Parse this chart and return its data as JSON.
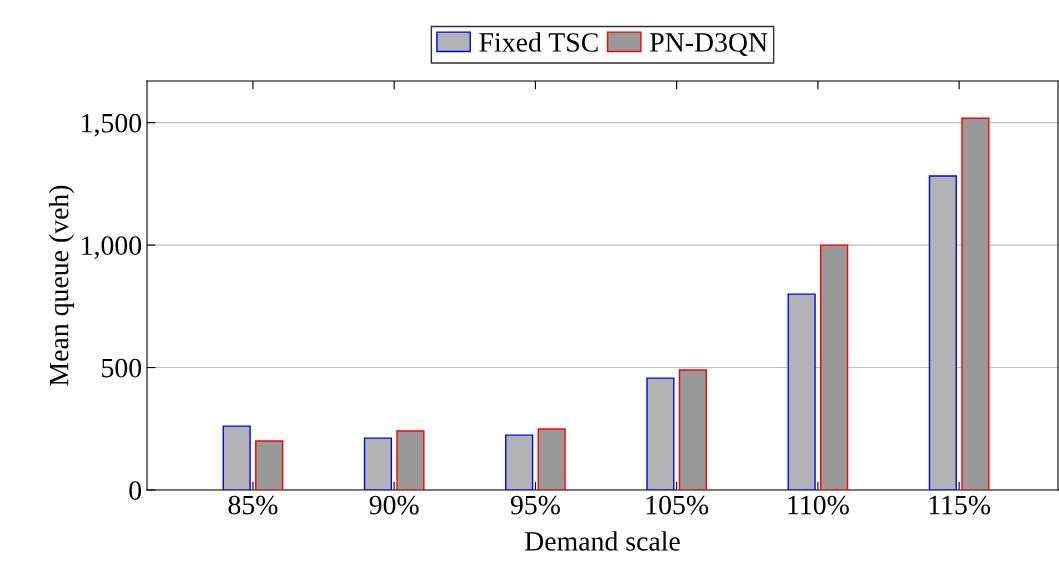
{
  "chart_data": {
    "type": "bar",
    "xlabel": "Demand scale",
    "ylabel": "Mean queue (veh)",
    "categories": [
      "85%",
      "90%",
      "95%",
      "105%",
      "110%",
      "115%"
    ],
    "series": [
      {
        "name": "Fixed TSC",
        "color": "#b3b3b3",
        "values": [
          261,
          212,
          224,
          457,
          800,
          1282
        ]
      },
      {
        "name": "PN-D3QN",
        "color": "#999999",
        "values": [
          200,
          241,
          249,
          490,
          1000,
          1518
        ]
      }
    ],
    "ylim": [
      0,
      1670
    ],
    "yticks": [
      0,
      {
        "value": 500,
        "label": "500"
      },
      {
        "value": 1000,
        "label": "1,000"
      },
      {
        "value": 1500,
        "label": "1,500"
      }
    ],
    "grid": "y",
    "legend": "top"
  }
}
